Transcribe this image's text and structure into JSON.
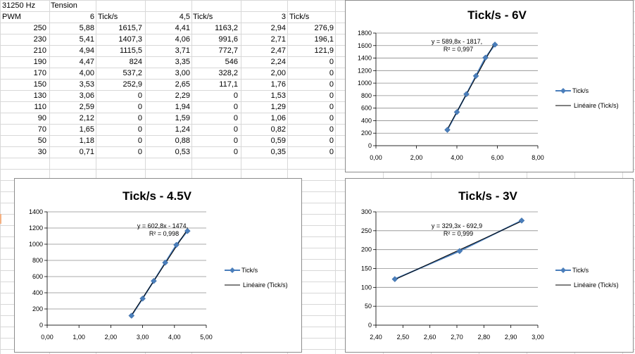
{
  "sheet": {
    "freq": "31250 Hz",
    "tension_header": "Tension",
    "pwm_header": "PWM",
    "groups": [
      {
        "tension": "6",
        "ticks_label": "Tick/s"
      },
      {
        "tension": "4,5",
        "ticks_label": "Tick/s"
      },
      {
        "tension": "3",
        "ticks_label": "Tick/s"
      }
    ],
    "rows": [
      [
        "250",
        "5,88",
        "1615,7",
        "4,41",
        "1163,2",
        "2,94",
        "276,9"
      ],
      [
        "230",
        "5,41",
        "1407,3",
        "4,06",
        "991,6",
        "2,71",
        "196,1"
      ],
      [
        "210",
        "4,94",
        "1115,5",
        "3,71",
        "772,7",
        "2,47",
        "121,9"
      ],
      [
        "190",
        "4,47",
        "824",
        "3,35",
        "546",
        "2,24",
        "0"
      ],
      [
        "170",
        "4,00",
        "537,2",
        "3,00",
        "328,2",
        "2,00",
        "0"
      ],
      [
        "150",
        "3,53",
        "252,9",
        "2,65",
        "117,1",
        "1,76",
        "0"
      ],
      [
        "130",
        "3,06",
        "0",
        "2,29",
        "0",
        "1,53",
        "0"
      ],
      [
        "110",
        "2,59",
        "0",
        "1,94",
        "0",
        "1,29",
        "0"
      ],
      [
        "90",
        "2,12",
        "0",
        "1,59",
        "0",
        "1,06",
        "0"
      ],
      [
        "70",
        "1,65",
        "0",
        "1,24",
        "0",
        "0,82",
        "0"
      ],
      [
        "50",
        "1,18",
        "0",
        "0,88",
        "0",
        "0,59",
        "0"
      ],
      [
        "30",
        "0,71",
        "0",
        "0,53",
        "0",
        "0,35",
        "0"
      ]
    ]
  },
  "colors": {
    "series": "#4a7ebb",
    "trend": "#000000",
    "grid": "#8c8c8c",
    "border": "#8c8c8c"
  },
  "chart_data": [
    {
      "type": "scatter",
      "title": "Tick/s - 6V",
      "series": [
        {
          "name": "Tick/s",
          "x": [
            5.88,
            5.41,
            4.94,
            4.47,
            4.0,
            3.53
          ],
          "y": [
            1615.7,
            1407.3,
            1115.5,
            824,
            537.2,
            252.9
          ]
        }
      ],
      "trendline": {
        "name": "Linéaire (Tick/s)",
        "slope": 589.8,
        "intercept": -1817,
        "equation": "y = 589,8x - 1817,",
        "r2": "R² = 0,997"
      },
      "xlim": [
        0,
        8
      ],
      "xticks": [
        0,
        2,
        4,
        6,
        8
      ],
      "xtick_labels": [
        "0,00",
        "2,00",
        "4,00",
        "6,00",
        "8,00"
      ],
      "ylim": [
        0,
        1800
      ],
      "yticks": [
        0,
        200,
        400,
        600,
        800,
        1000,
        1200,
        1400,
        1600,
        1800
      ],
      "ytick_labels": [
        "0",
        "200",
        "400",
        "600",
        "800",
        "1000",
        "1200",
        "1400",
        "1600",
        "1800"
      ],
      "grid": true,
      "legend": "right"
    },
    {
      "type": "scatter",
      "title": "Tick/s - 4.5V",
      "series": [
        {
          "name": "Tick/s",
          "x": [
            4.41,
            4.06,
            3.71,
            3.35,
            3.0,
            2.65
          ],
          "y": [
            1163.2,
            991.6,
            772.7,
            546,
            328.2,
            117.1
          ]
        }
      ],
      "trendline": {
        "name": "Linéaire (Tick/s)",
        "slope": 602.8,
        "intercept": -1474,
        "equation": "y = 602,8x - 1474,",
        "r2": "R² = 0,998"
      },
      "xlim": [
        0,
        5
      ],
      "xticks": [
        0,
        1,
        2,
        3,
        4,
        5
      ],
      "xtick_labels": [
        "0,00",
        "1,00",
        "2,00",
        "3,00",
        "4,00",
        "5,00"
      ],
      "ylim": [
        0,
        1400
      ],
      "yticks": [
        0,
        200,
        400,
        600,
        800,
        1000,
        1200,
        1400
      ],
      "ytick_labels": [
        "0",
        "200",
        "400",
        "600",
        "800",
        "1000",
        "1200",
        "1400"
      ],
      "grid": true,
      "legend": "right"
    },
    {
      "type": "scatter",
      "title": "Tick/s - 3V",
      "series": [
        {
          "name": "Tick/s",
          "x": [
            2.94,
            2.71,
            2.47
          ],
          "y": [
            276.9,
            196.1,
            121.9
          ]
        }
      ],
      "trendline": {
        "name": "Linéaire (Tick/s)",
        "slope": 329.3,
        "intercept": -692.9,
        "equation": "y = 329,3x - 692,9",
        "r2": "R² = 0,999"
      },
      "xlim": [
        2.4,
        3.0
      ],
      "xticks": [
        2.4,
        2.5,
        2.6,
        2.7,
        2.8,
        2.9,
        3.0
      ],
      "xtick_labels": [
        "2,40",
        "2,50",
        "2,60",
        "2,70",
        "2,80",
        "2,90",
        "3,00"
      ],
      "ylim": [
        0,
        300
      ],
      "yticks": [
        0,
        50,
        100,
        150,
        200,
        250,
        300
      ],
      "ytick_labels": [
        "0",
        "50",
        "100",
        "150",
        "200",
        "250",
        "300"
      ],
      "grid": true,
      "legend": "right"
    }
  ]
}
